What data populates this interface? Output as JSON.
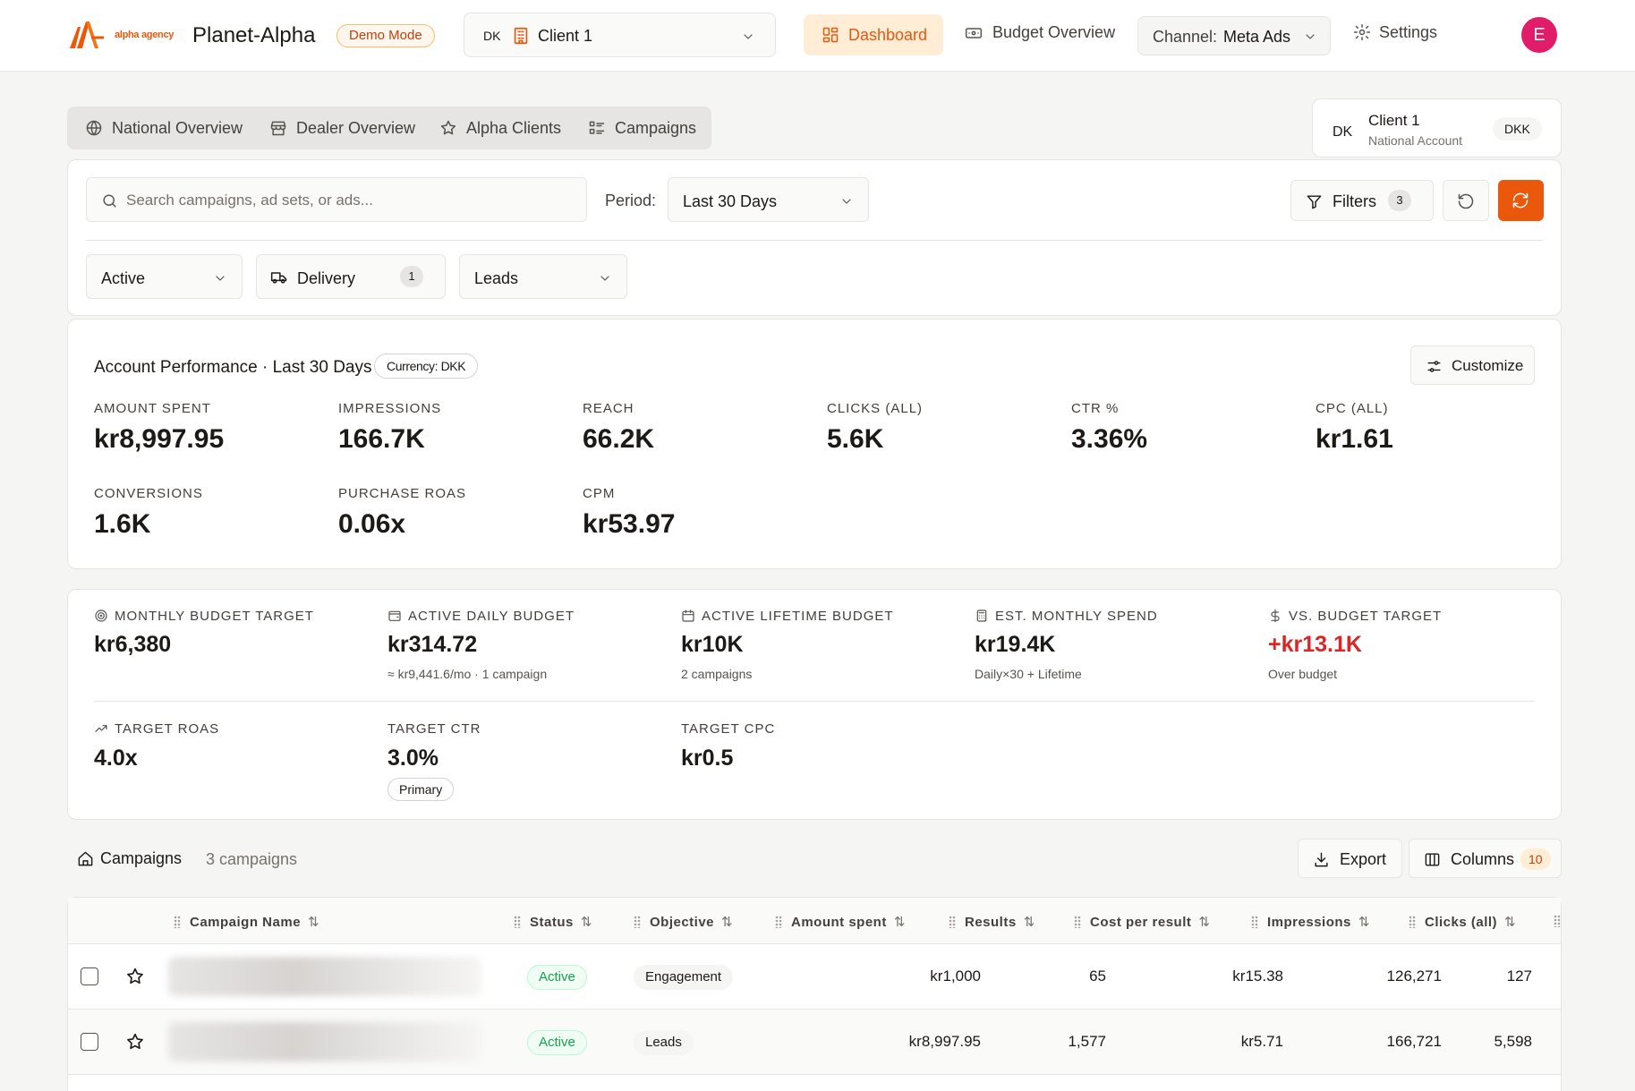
{
  "header": {
    "logo_text": "alpha agency",
    "app_title": "Planet-Alpha",
    "demo_badge": "Demo Mode",
    "client_select": {
      "country": "DK",
      "name": "Client 1"
    },
    "nav": {
      "dashboard": "Dashboard",
      "budget_overview": "Budget Overview",
      "channel_label": "Channel:",
      "channel_value": "Meta Ads",
      "settings": "Settings"
    },
    "avatar_initial": "E"
  },
  "tabs": [
    {
      "label": "National Overview",
      "icon": "globe-icon"
    },
    {
      "label": "Dealer Overview",
      "icon": "store-icon"
    },
    {
      "label": "Alpha Clients",
      "icon": "star-icon"
    },
    {
      "label": "Campaigns",
      "icon": "list-icon"
    }
  ],
  "account_card": {
    "country": "DK",
    "name": "Client 1",
    "type": "National Account",
    "currency": "DKK"
  },
  "filters": {
    "search_placeholder": "Search campaigns, ad sets, or ads...",
    "period_label": "Period:",
    "period_value": "Last 30 Days",
    "filters_label": "Filters",
    "filters_count": "3",
    "status_value": "Active",
    "delivery_label": "Delivery",
    "delivery_count": "1",
    "objective_value": "Leads"
  },
  "performance": {
    "title": "Account Performance · Last 30 Days",
    "currency_pill": "Currency: DKK",
    "customize_label": "Customize",
    "metrics": [
      {
        "label": "AMOUNT SPENT",
        "value": "kr8,997.95"
      },
      {
        "label": "IMPRESSIONS",
        "value": "166.7K"
      },
      {
        "label": "REACH",
        "value": "66.2K"
      },
      {
        "label": "CLICKS (ALL)",
        "value": "5.6K"
      },
      {
        "label": "CTR %",
        "value": "3.36%"
      },
      {
        "label": "CPC (ALL)",
        "value": "kr1.61"
      },
      {
        "label": "CONVERSIONS",
        "value": "1.6K"
      },
      {
        "label": "PURCHASE ROAS",
        "value": "0.06x"
      },
      {
        "label": "CPM",
        "value": "kr53.97"
      }
    ]
  },
  "budget": {
    "items": [
      {
        "label": "MONTHLY BUDGET TARGET",
        "value": "kr6,380",
        "sub": "",
        "icon": "target-icon"
      },
      {
        "label": "ACTIVE DAILY BUDGET",
        "value": "kr314.72",
        "sub": "≈ kr9,441.6/mo · 1 campaign",
        "icon": "wallet-icon"
      },
      {
        "label": "ACTIVE LIFETIME BUDGET",
        "value": "kr10K",
        "sub": "2 campaigns",
        "icon": "calendar-icon"
      },
      {
        "label": "EST. MONTHLY SPEND",
        "value": "kr19.4K",
        "sub": "Daily×30 + Lifetime",
        "icon": "calculator-icon"
      },
      {
        "label": "VS. BUDGET TARGET",
        "value": "+kr13.1K",
        "sub": "Over budget",
        "icon": "dollar-icon"
      }
    ],
    "targets": [
      {
        "label": "TARGET ROAS",
        "value": "4.0x",
        "icon": "trending-up-icon"
      },
      {
        "label": "TARGET CTR",
        "value": "3.0%",
        "pill": "Primary"
      },
      {
        "label": "TARGET CPC",
        "value": "kr0.5"
      }
    ],
    "over_color": "#dc2626"
  },
  "campaigns": {
    "title": "Campaigns",
    "count_label": "3 campaigns",
    "export_label": "Export",
    "columns_label": "Columns",
    "columns_count": "10",
    "headers": [
      "Campaign Name",
      "Status",
      "Objective",
      "Amount spent",
      "Results",
      "Cost per result",
      "Impressions",
      "Clicks (all)"
    ],
    "rows": [
      {
        "status": "Active",
        "objective": "Engagement",
        "amount_spent": "kr1,000",
        "results": "65",
        "cost_per_result": "kr15.38",
        "impressions": "126,271",
        "clicks": "127"
      },
      {
        "status": "Active",
        "objective": "Leads",
        "amount_spent": "kr8,997.95",
        "results": "1,577",
        "cost_per_result": "kr5.71",
        "impressions": "166,721",
        "clicks": "5,598"
      }
    ]
  },
  "colors": {
    "accent": "#ea580c",
    "accent_soft": "#ffedd5",
    "active_green": "#16a34a",
    "avatar": "#e11d6a"
  }
}
